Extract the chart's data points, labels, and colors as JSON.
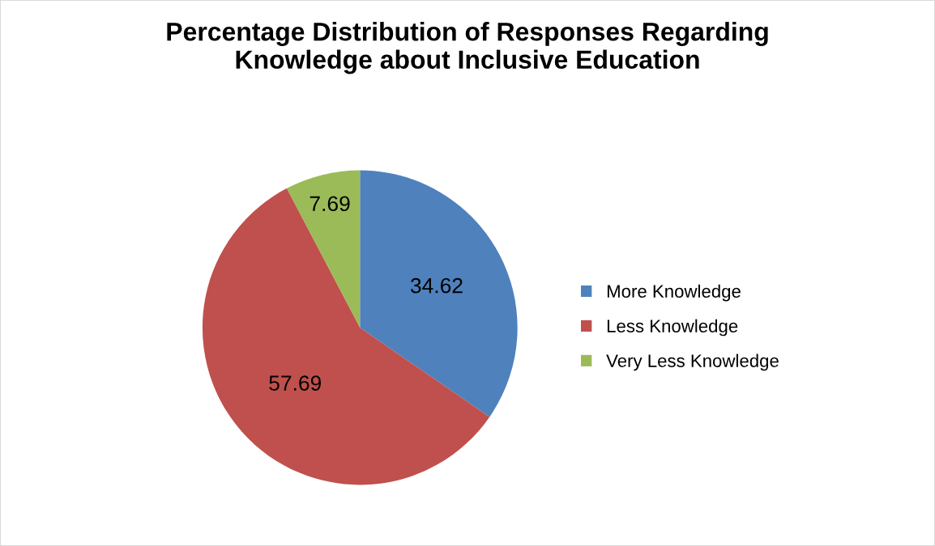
{
  "chart_data": {
    "type": "pie",
    "title": "Percentage Distribution of Responses Regarding\nKnowledge about Inclusive Education",
    "categories": [
      "More Knowledge",
      "Less Knowledge",
      "Very Less Knowledge"
    ],
    "values": [
      34.62,
      57.69,
      7.69
    ],
    "colors": [
      "#4f81bd",
      "#c0504d",
      "#9bbb59"
    ],
    "data_labels": true,
    "legend": "right"
  }
}
